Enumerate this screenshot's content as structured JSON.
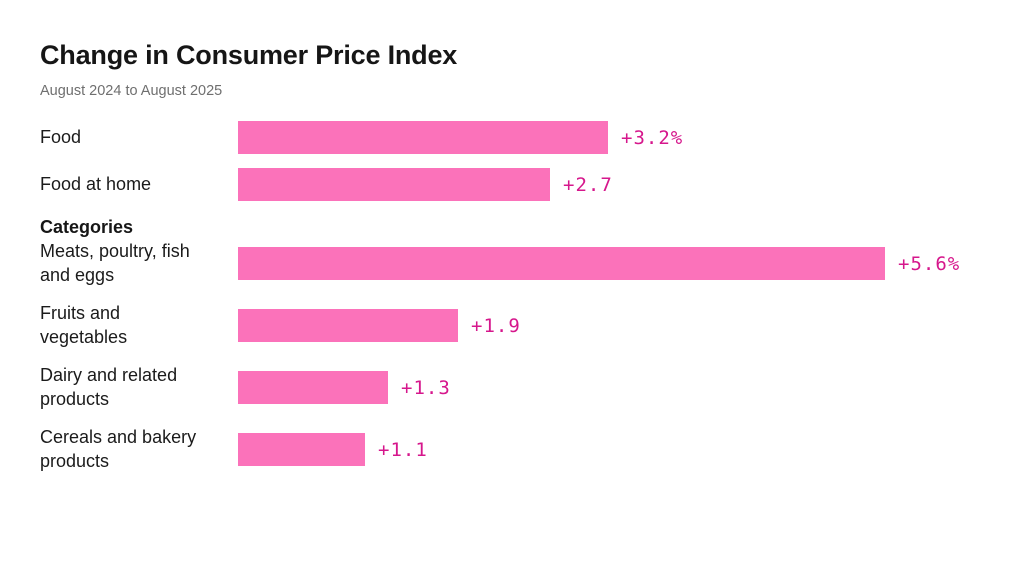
{
  "header": {
    "title": "Change in Consumer Price Index",
    "subtitle": "August 2024 to August 2025"
  },
  "section": {
    "label": "Categories"
  },
  "chart_data": {
    "type": "bar",
    "orientation": "horizontal",
    "title": "Change in Consumer Price Index",
    "subtitle": "August 2024 to August 2025",
    "categories": [
      "Food",
      "Food at home",
      "Meats, poultry, fish and eggs",
      "Fruits and vegetables",
      "Dairy and related products",
      "Cereals and bakery products"
    ],
    "values": [
      3.2,
      2.7,
      5.6,
      1.9,
      1.3,
      1.1
    ],
    "value_labels": [
      "+3.2%",
      "+2.7",
      "+5.6%",
      "+1.9",
      "+1.3",
      "+1.1"
    ],
    "xlim": [
      0,
      5.85
    ],
    "grid": false,
    "legend": false,
    "bar_color": "#FB72BA",
    "value_color": "#D6178C"
  },
  "rows": [
    {
      "label": "Food"
    },
    {
      "label": "Food at home"
    },
    {
      "label": "Meats, poultry, fish\nand eggs"
    },
    {
      "label": "Fruits and\nvegetables"
    },
    {
      "label": "Dairy and related\nproducts"
    },
    {
      "label": "Cereals and bakery\nproducts"
    }
  ]
}
